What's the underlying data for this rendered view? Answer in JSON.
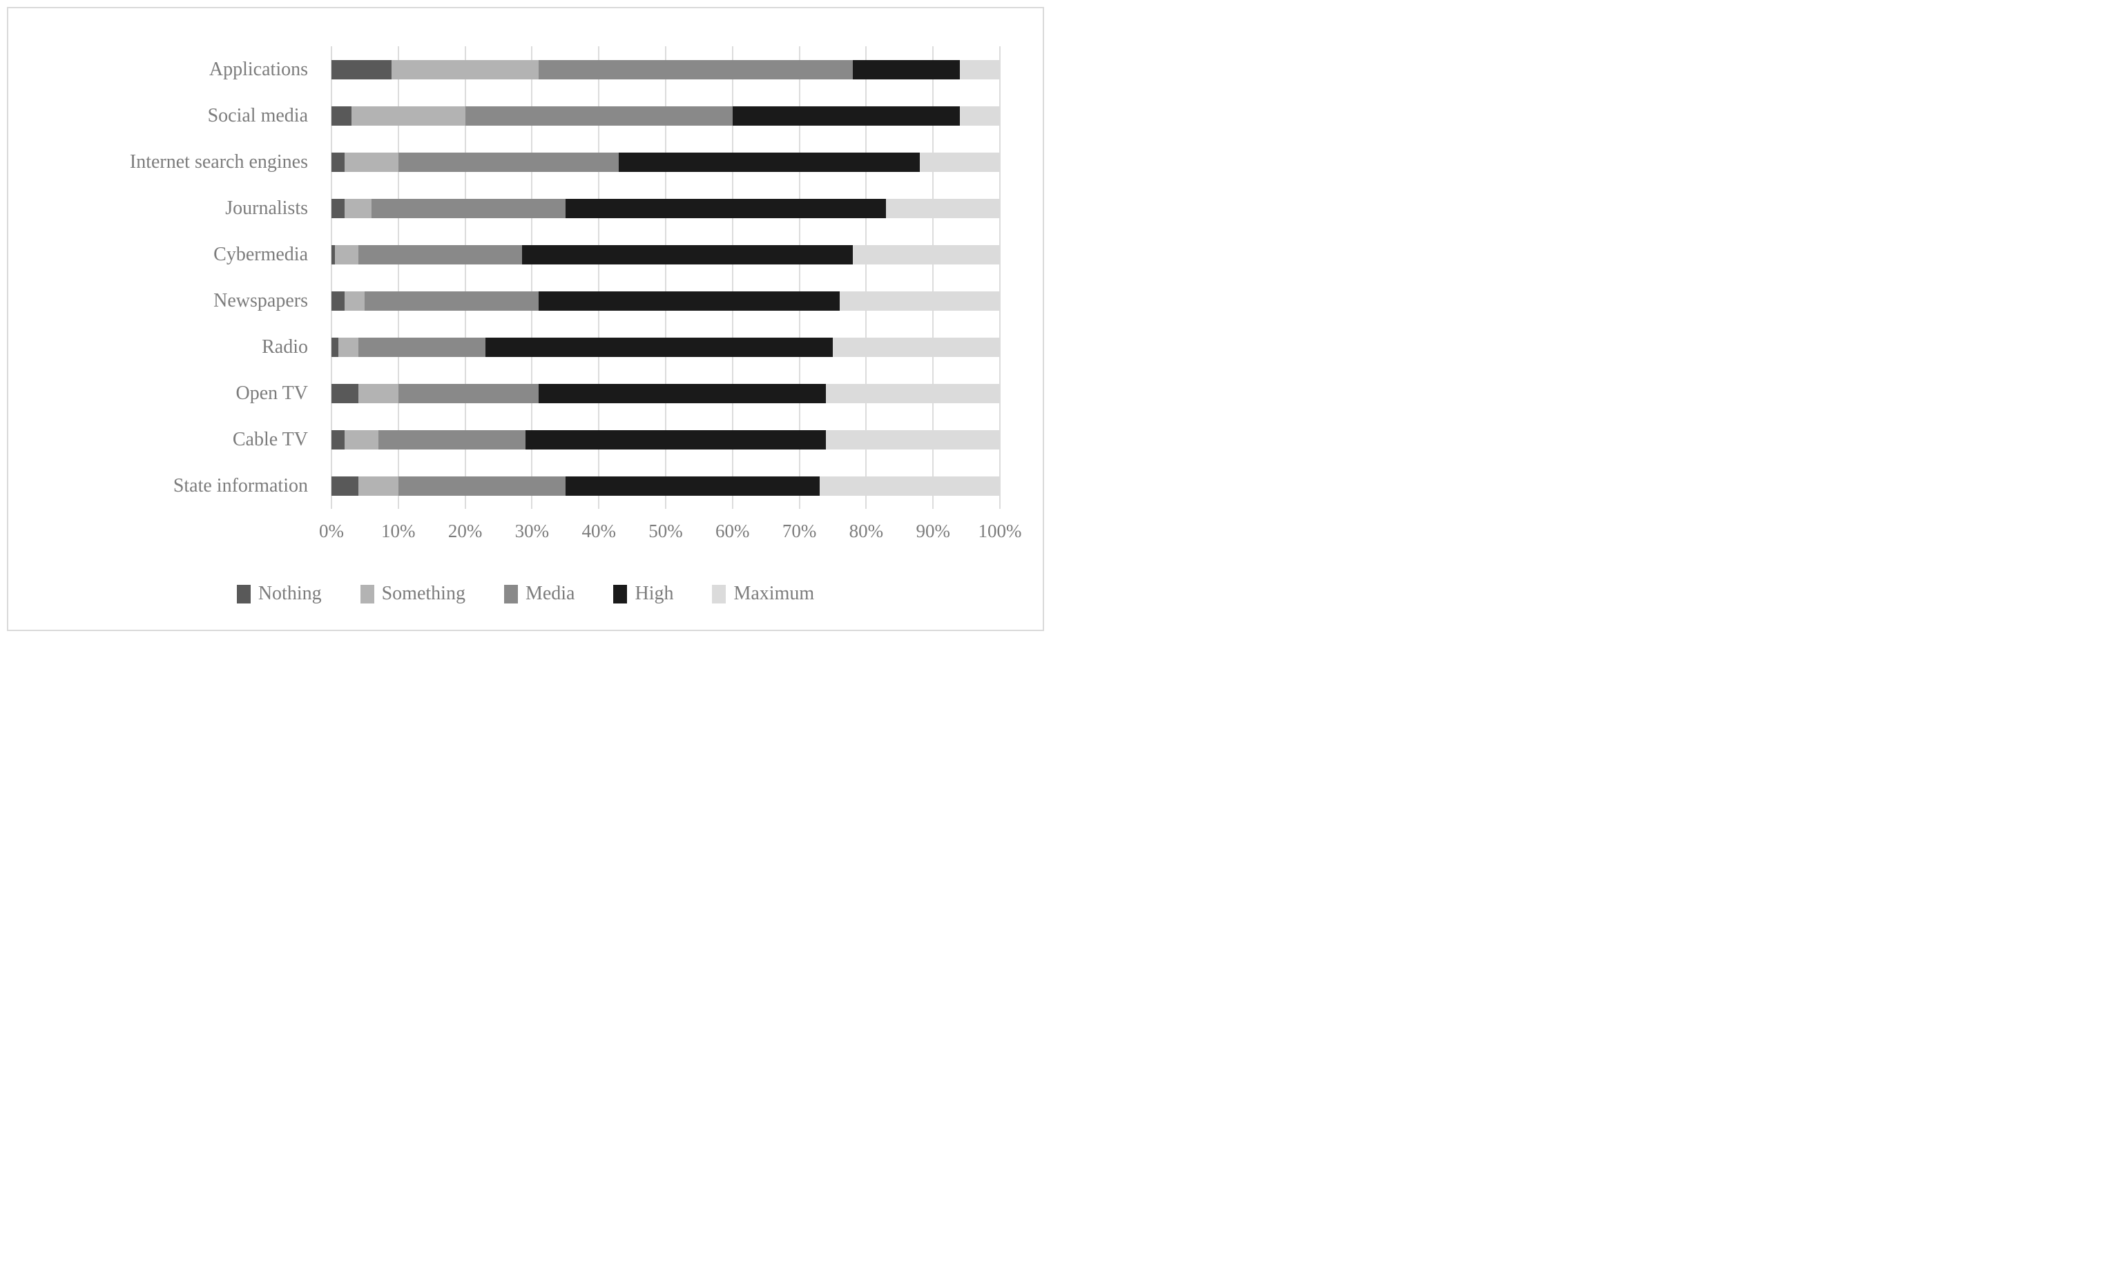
{
  "figure": {
    "border_color": "#d9d9d9",
    "background_color": "#ffffff",
    "text_color": "#7c7c7c",
    "gridline_color": "#dcdcdc"
  },
  "chart_data": {
    "type": "bar",
    "orientation": "horizontal",
    "stacked": true,
    "unit": "%",
    "title": "",
    "xlabel": "",
    "ylabel": "",
    "xlim": [
      0,
      100
    ],
    "grid": true,
    "legend_position": "bottom",
    "xticks": [
      "0%",
      "10%",
      "20%",
      "30%",
      "40%",
      "50%",
      "60%",
      "70%",
      "80%",
      "90%",
      "100%"
    ],
    "categories": [
      "Applications",
      "Social media",
      "Internet search engines",
      "Journalists",
      "Cybermedia",
      "Newspapers",
      "Radio",
      "Open TV",
      "Cable TV",
      "State information"
    ],
    "series": [
      {
        "name": "Nothing",
        "color": "#595959",
        "values": [
          9,
          3,
          2,
          2,
          0.5,
          2,
          1,
          4,
          2,
          4
        ]
      },
      {
        "name": "Something",
        "color": "#b3b3b3",
        "values": [
          22,
          17,
          8,
          4,
          3.5,
          3,
          3,
          6,
          5,
          6
        ]
      },
      {
        "name": "Media",
        "color": "#898989",
        "values": [
          47,
          40,
          33,
          29,
          24.5,
          26,
          19,
          21,
          22,
          25
        ]
      },
      {
        "name": "High",
        "color": "#1a1a1a",
        "values": [
          16,
          34,
          45,
          48,
          49.5,
          45,
          52,
          43,
          45,
          38
        ]
      },
      {
        "name": "Maximum",
        "color": "#dbdbdb",
        "values": [
          6,
          6,
          12,
          17,
          22,
          24,
          25,
          26,
          26,
          27
        ]
      }
    ]
  }
}
